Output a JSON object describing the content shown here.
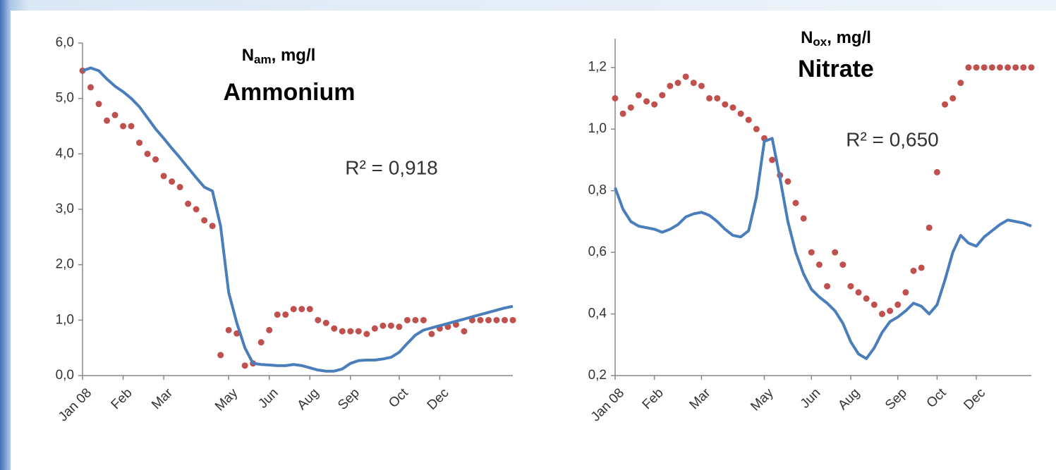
{
  "chart_data": [
    {
      "type": "line",
      "title_parts": [
        "N",
        "am",
        ", mg/l"
      ],
      "subtitle": "Ammonium",
      "annotation": "R² = 0,918",
      "categories": [
        "Jan 08",
        null,
        null,
        null,
        null,
        "Feb",
        null,
        null,
        null,
        null,
        "Mar",
        null,
        null,
        null,
        null,
        null,
        null,
        null,
        "May",
        null,
        null,
        null,
        null,
        "Jun",
        null,
        null,
        null,
        null,
        "Aug",
        null,
        null,
        null,
        null,
        "Sep",
        null,
        null,
        null,
        null,
        null,
        "Oct",
        null,
        null,
        null,
        null,
        "Dec",
        null,
        null,
        null,
        null,
        null,
        null,
        null,
        null,
        null
      ],
      "ylim": [
        0,
        6
      ],
      "yticks": [
        {
          "value": 0,
          "label": "0,0"
        },
        {
          "value": 1,
          "label": "1,0"
        },
        {
          "value": 2,
          "label": "2,0"
        },
        {
          "value": 3,
          "label": "3,0"
        },
        {
          "value": 4,
          "label": "4,0"
        },
        {
          "value": 5,
          "label": "5,0"
        },
        {
          "value": 6,
          "label": "6,0"
        }
      ],
      "grid": false,
      "series": [
        {
          "style": "markers",
          "color": "#c0504d",
          "values": [
            5.5,
            5.2,
            4.9,
            4.6,
            4.7,
            4.5,
            4.5,
            4.2,
            4.0,
            3.9,
            3.6,
            3.5,
            3.4,
            3.1,
            3.0,
            2.8,
            2.7,
            0.37,
            0.82,
            0.76,
            0.18,
            0.22,
            0.6,
            0.82,
            1.1,
            1.1,
            1.2,
            1.2,
            1.2,
            1.0,
            0.95,
            0.85,
            0.8,
            0.8,
            0.8,
            0.75,
            0.85,
            0.9,
            0.9,
            0.88,
            1.0,
            1.0,
            1.0,
            0.75,
            0.85,
            0.88,
            0.92,
            0.8,
            1.0,
            1.0,
            1.0,
            1.0,
            1.0,
            1.0
          ]
        },
        {
          "style": "line",
          "color": "#4a7ebb",
          "values": [
            5.5,
            5.55,
            5.5,
            5.35,
            5.22,
            5.12,
            5.0,
            4.85,
            4.65,
            4.45,
            4.28,
            4.1,
            3.93,
            3.75,
            3.57,
            3.4,
            3.33,
            2.7,
            1.5,
            0.95,
            0.5,
            0.22,
            0.2,
            0.19,
            0.18,
            0.18,
            0.2,
            0.18,
            0.14,
            0.1,
            0.08,
            0.08,
            0.12,
            0.22,
            0.27,
            0.28,
            0.28,
            0.3,
            0.33,
            0.42,
            0.58,
            0.73,
            0.82,
            0.86,
            0.9,
            0.94,
            0.98,
            1.02,
            1.06,
            1.1,
            1.14,
            1.18,
            1.22,
            1.25
          ]
        }
      ]
    },
    {
      "type": "line",
      "title_parts": [
        "N",
        "ox",
        ", mg/l"
      ],
      "subtitle": "Nitrate",
      "annotation": "R² = 0,650",
      "categories": [
        "Jan 08",
        null,
        null,
        null,
        null,
        "Feb",
        null,
        null,
        null,
        null,
        null,
        "Mar",
        null,
        null,
        null,
        null,
        null,
        null,
        null,
        "May",
        null,
        null,
        null,
        null,
        null,
        "Jun",
        null,
        null,
        null,
        null,
        "Aug",
        null,
        null,
        null,
        null,
        null,
        "Sep",
        null,
        null,
        null,
        null,
        "Oct",
        null,
        null,
        null,
        null,
        "Dec",
        null,
        null,
        null,
        null,
        null,
        null,
        null
      ],
      "ylim": [
        0.2,
        1.3
      ],
      "yticks": [
        {
          "value": 0.2,
          "label": "0,2"
        },
        {
          "value": 0.4,
          "label": "0,4"
        },
        {
          "value": 0.6,
          "label": "0,6"
        },
        {
          "value": 0.8,
          "label": "0,8"
        },
        {
          "value": 1.0,
          "label": "1,0"
        },
        {
          "value": 1.2,
          "label": "1,2"
        }
      ],
      "grid": false,
      "series": [
        {
          "style": "markers",
          "color": "#c0504d",
          "values": [
            1.1,
            1.05,
            1.07,
            1.11,
            1.09,
            1.08,
            1.11,
            1.14,
            1.15,
            1.17,
            1.15,
            1.14,
            1.1,
            1.1,
            1.08,
            1.07,
            1.05,
            1.03,
            1.0,
            0.97,
            0.9,
            0.85,
            0.83,
            0.76,
            0.71,
            0.6,
            0.56,
            0.49,
            0.6,
            0.56,
            0.49,
            0.47,
            0.45,
            0.43,
            0.4,
            0.41,
            0.43,
            0.47,
            0.54,
            0.55,
            0.68,
            0.86,
            1.08,
            1.1,
            1.15,
            1.2,
            1.2,
            1.2,
            1.2,
            1.2,
            1.2,
            1.2,
            1.2,
            1.2
          ]
        },
        {
          "style": "line",
          "color": "#4a7ebb",
          "values": [
            0.81,
            0.74,
            0.7,
            0.685,
            0.68,
            0.675,
            0.665,
            0.675,
            0.69,
            0.715,
            0.725,
            0.73,
            0.72,
            0.7,
            0.675,
            0.655,
            0.65,
            0.67,
            0.78,
            0.96,
            0.97,
            0.84,
            0.7,
            0.6,
            0.53,
            0.48,
            0.455,
            0.435,
            0.41,
            0.37,
            0.31,
            0.27,
            0.255,
            0.29,
            0.34,
            0.375,
            0.39,
            0.41,
            0.435,
            0.425,
            0.4,
            0.43,
            0.51,
            0.6,
            0.655,
            0.63,
            0.62,
            0.65,
            0.67,
            0.69,
            0.705,
            0.7,
            0.695,
            0.685
          ]
        }
      ]
    }
  ]
}
